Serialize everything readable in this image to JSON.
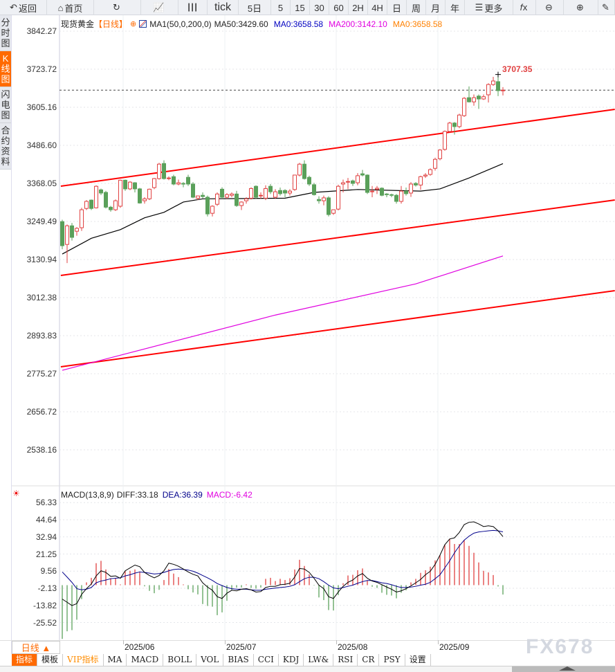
{
  "toolbar": {
    "items": [
      {
        "label": "返回",
        "icon": "back-arrow-icon",
        "w": 68
      },
      {
        "label": "首页",
        "icon": "home-icon",
        "w": 68
      },
      {
        "label": "",
        "icon": "refresh-icon",
        "w": 68
      },
      {
        "label": "",
        "icon": "bar-chart-icon",
        "w": 54
      },
      {
        "label": "",
        "icon": "candlestick-icon",
        "w": 42
      },
      {
        "label": "tick",
        "icon": "",
        "w": 45
      },
      {
        "label": "5日",
        "icon": "",
        "w": 47
      },
      {
        "label": "5",
        "icon": "",
        "w": 28
      },
      {
        "label": "15",
        "icon": "",
        "w": 28
      },
      {
        "label": "30",
        "icon": "",
        "w": 28
      },
      {
        "label": "60",
        "icon": "",
        "w": 28
      },
      {
        "label": "2H",
        "icon": "",
        "w": 28
      },
      {
        "label": "4H",
        "icon": "",
        "w": 28
      },
      {
        "label": "日",
        "icon": "",
        "w": 28
      },
      {
        "label": "周",
        "icon": "",
        "w": 28
      },
      {
        "label": "月",
        "icon": "",
        "w": 28
      },
      {
        "label": "年",
        "icon": "",
        "w": 28
      },
      {
        "label": "更多",
        "icon": "menu-icon",
        "w": 70
      },
      {
        "label": "",
        "icon": "fx-icon",
        "w": 33
      },
      {
        "label": "",
        "icon": "zoom-out-icon",
        "w": 40
      },
      {
        "label": "",
        "icon": "zoom-in-icon",
        "w": 50
      },
      {
        "label": "",
        "icon": "draw-icon",
        "w": 24
      }
    ]
  },
  "leftbar": [
    {
      "label": "分时图",
      "active": false
    },
    {
      "label": "K线图",
      "active": true
    },
    {
      "label": "闪电图",
      "active": false
    },
    {
      "label": "合约资料",
      "active": false
    }
  ],
  "header": {
    "symbol": "现货黄金",
    "period": "【日线】",
    "ma_params": "MA1(50,0,200,0)",
    "ma50": "MA50:3429.60",
    "ma0": "MA0:3658.58",
    "ma200": "MA200:3142.10",
    "ma0b": "MA0:3658.58"
  },
  "colors": {
    "up": "#e04040",
    "down": "#5aa05a",
    "ma50": "#000000",
    "ma200": "#e000e0",
    "trend": "#ff0000",
    "accent": "#ff6a00",
    "ma0": "#0000c0",
    "ma0b": "#ff8000",
    "dea": "#00008b",
    "diff": "#000000"
  },
  "high_label": "3707.35",
  "macd_header": {
    "name": "MACD(13,8,9)",
    "diff": "DIFF:33.18",
    "dea": "DEA:36.39",
    "macd": "MACD:-6.42"
  },
  "footer": {
    "period_button": "日线 ▲",
    "watermark": "FX678"
  },
  "tabs": [
    {
      "label": "指标",
      "active": true
    },
    {
      "label": "模板"
    },
    {
      "label": "VIP指标",
      "vip": true
    },
    {
      "label": "MA"
    },
    {
      "label": "MACD"
    },
    {
      "label": "BOLL"
    },
    {
      "label": "VOL"
    },
    {
      "label": "BIAS"
    },
    {
      "label": "CCI"
    },
    {
      "label": "KDJ"
    },
    {
      "label": "LW&"
    },
    {
      "label": "RSI"
    },
    {
      "label": "CR"
    },
    {
      "label": "PSY"
    },
    {
      "label": "设置"
    }
  ],
  "chart_data": {
    "type": "candlestick",
    "price_axis": {
      "ticks": [
        "3842.27",
        "3723.72",
        "3605.16",
        "3486.60",
        "3368.05",
        "3249.49",
        "3130.94",
        "3012.38",
        "2893.83",
        "2775.27",
        "2656.72",
        "2538.16"
      ],
      "range": [
        2538.16,
        3842.27
      ]
    },
    "date_ticks": [
      {
        "label": "2025/06",
        "index": 13
      },
      {
        "label": "2025/07",
        "index": 34
      },
      {
        "label": "2025/08",
        "index": 57
      },
      {
        "label": "2025/09",
        "index": 78
      }
    ],
    "last_price": 3658.58,
    "candles_ohlc": [
      [
        3249,
        3255,
        3163,
        3174
      ],
      [
        3178,
        3240,
        3120,
        3236
      ],
      [
        3236,
        3245,
        3190,
        3200
      ],
      [
        3219,
        3232,
        3205,
        3228
      ],
      [
        3230,
        3292,
        3220,
        3286
      ],
      [
        3290,
        3316,
        3285,
        3312
      ],
      [
        3316,
        3318,
        3285,
        3290
      ],
      [
        3292,
        3362,
        3290,
        3359
      ],
      [
        3348,
        3352,
        3332,
        3338
      ],
      [
        3340,
        3345,
        3290,
        3294
      ],
      [
        3294,
        3298,
        3280,
        3286
      ],
      [
        3286,
        3318,
        3282,
        3314
      ],
      [
        3297,
        3380,
        3292,
        3378
      ],
      [
        3378,
        3380,
        3345,
        3351
      ],
      [
        3351,
        3375,
        3347,
        3372
      ],
      [
        3370,
        3372,
        3340,
        3351
      ],
      [
        3351,
        3354,
        3305,
        3307
      ],
      [
        3314,
        3325,
        3305,
        3320
      ],
      [
        3320,
        3352,
        3316,
        3350
      ],
      [
        3355,
        3385,
        3350,
        3383
      ],
      [
        3383,
        3432,
        3380,
        3428
      ],
      [
        3430,
        3440,
        3380,
        3383
      ],
      [
        3383,
        3390,
        3378,
        3385
      ],
      [
        3389,
        3395,
        3362,
        3366
      ],
      [
        3366,
        3380,
        3362,
        3370
      ],
      [
        3368,
        3372,
        3356,
        3366
      ],
      [
        3387,
        3395,
        3360,
        3366
      ],
      [
        3366,
        3372,
        3322,
        3325
      ],
      [
        3322,
        3330,
        3316,
        3329
      ],
      [
        3331,
        3340,
        3322,
        3327
      ],
      [
        3325,
        3330,
        3265,
        3273
      ],
      [
        3275,
        3300,
        3265,
        3297
      ],
      [
        3303,
        3340,
        3298,
        3335
      ],
      [
        3350,
        3356,
        3320,
        3325
      ],
      [
        3325,
        3338,
        3320,
        3333
      ],
      [
        3331,
        3340,
        3325,
        3335
      ],
      [
        3335,
        3345,
        3295,
        3299
      ],
      [
        3299,
        3312,
        3285,
        3310
      ],
      [
        3314,
        3325,
        3305,
        3320
      ],
      [
        3322,
        3356,
        3318,
        3352
      ],
      [
        3359,
        3362,
        3320,
        3325
      ],
      [
        3329,
        3340,
        3320,
        3331
      ],
      [
        3322,
        3362,
        3316,
        3352
      ],
      [
        3359,
        3366,
        3335,
        3342
      ],
      [
        3325,
        3350,
        3320,
        3342
      ],
      [
        3346,
        3355,
        3330,
        3336
      ],
      [
        3346,
        3350,
        3325,
        3338
      ],
      [
        3338,
        3350,
        3330,
        3344
      ],
      [
        3349,
        3395,
        3345,
        3394
      ],
      [
        3394,
        3432,
        3390,
        3428
      ],
      [
        3428,
        3440,
        3380,
        3383
      ],
      [
        3387,
        3392,
        3360,
        3366
      ],
      [
        3364,
        3370,
        3330,
        3333
      ],
      [
        3318,
        3328,
        3305,
        3314
      ],
      [
        3314,
        3330,
        3300,
        3323
      ],
      [
        3323,
        3328,
        3265,
        3271
      ],
      [
        3275,
        3286,
        3270,
        3286
      ],
      [
        3288,
        3364,
        3284,
        3359
      ],
      [
        3366,
        3380,
        3340,
        3370
      ],
      [
        3372,
        3385,
        3350,
        3374
      ],
      [
        3376,
        3380,
        3360,
        3368
      ],
      [
        3370,
        3400,
        3362,
        3392
      ],
      [
        3398,
        3410,
        3390,
        3394
      ],
      [
        3394,
        3396,
        3335,
        3340
      ],
      [
        3342,
        3360,
        3325,
        3344
      ],
      [
        3350,
        3360,
        3335,
        3353
      ],
      [
        3353,
        3356,
        3328,
        3331
      ],
      [
        3335,
        3338,
        3325,
        3333
      ],
      [
        3333,
        3336,
        3325,
        3331
      ],
      [
        3331,
        3335,
        3305,
        3312
      ],
      [
        3312,
        3360,
        3305,
        3344
      ],
      [
        3344,
        3355,
        3330,
        3336
      ],
      [
        3338,
        3372,
        3326,
        3366
      ],
      [
        3368,
        3372,
        3358,
        3363
      ],
      [
        3363,
        3392,
        3348,
        3389
      ],
      [
        3391,
        3400,
        3385,
        3394
      ],
      [
        3396,
        3415,
        3392,
        3411
      ],
      [
        3415,
        3448,
        3408,
        3443
      ],
      [
        3445,
        3475,
        3440,
        3472
      ],
      [
        3474,
        3533,
        3470,
        3530
      ],
      [
        3530,
        3560,
        3525,
        3556
      ],
      [
        3556,
        3559,
        3520,
        3545
      ],
      [
        3545,
        3585,
        3540,
        3581
      ],
      [
        3579,
        3637,
        3575,
        3633
      ],
      [
        3635,
        3670,
        3620,
        3622
      ],
      [
        3622,
        3645,
        3610,
        3635
      ],
      [
        3640,
        3645,
        3600,
        3631
      ],
      [
        3631,
        3645,
        3628,
        3638
      ],
      [
        3644,
        3680,
        3620,
        3676
      ],
      [
        3676,
        3700,
        3672,
        3687
      ],
      [
        3685,
        3707.35,
        3640,
        3657
      ],
      [
        3657,
        3668,
        3642,
        3658.58
      ]
    ],
    "ma50": [
      [
        0,
        3148
      ],
      [
        6,
        3197
      ],
      [
        12,
        3224
      ],
      [
        17,
        3261
      ],
      [
        21,
        3278
      ],
      [
        25,
        3310
      ],
      [
        29,
        3320
      ],
      [
        46,
        3322
      ],
      [
        52,
        3340
      ],
      [
        61,
        3349
      ],
      [
        74,
        3344
      ],
      [
        78,
        3351
      ],
      [
        84,
        3385
      ],
      [
        91,
        3429.6
      ]
    ],
    "ma200": [
      [
        0,
        2786
      ],
      [
        44,
        2958
      ],
      [
        73,
        3055
      ],
      [
        91,
        3142.1
      ]
    ],
    "trend_lines": [
      [
        [
          -0.3,
          3359.4
        ],
        [
          114.1,
          3598.7
        ]
      ],
      [
        [
          -0.3,
          3081.4
        ],
        [
          114.1,
          3316.3
        ]
      ],
      [
        [
          -0.3,
          2796.8
        ],
        [
          114.1,
          3034.0
        ]
      ]
    ],
    "macd": {
      "axis_ticks": [
        "56.33",
        "44.64",
        "32.94",
        "21.25",
        "9.56",
        "-2.13",
        "-13.82",
        "-25.52"
      ],
      "hist": [
        -36.7,
        -31.5,
        -30.7,
        -23.6,
        -9.5,
        1.9,
        5,
        15,
        16.6,
        10.7,
        4.7,
        4.7,
        0.5,
        9.5,
        9.8,
        10.7,
        8.7,
        -0.8,
        -3.9,
        -5.5,
        -3.2,
        3.5,
        11,
        7.9,
        5.5,
        0.5,
        -2.8,
        -5,
        -6.3,
        -12.9,
        -14.2,
        -14.7,
        -20.5,
        -18.6,
        -10.7,
        -3.2,
        -1.6,
        -1.6,
        0.5,
        -1.9,
        -2.4,
        -1.6,
        4.3,
        5,
        2.8,
        4.3,
        3.5,
        4.7,
        10.7,
        17.3,
        13.1,
        7.4,
        -0.3,
        -8.4,
        -10.2,
        -17,
        -17.3,
        -6.8,
        1.3,
        6.6,
        7.1,
        10.2,
        11.4,
        3.2,
        -1.1,
        -1.9,
        -5.2,
        -6.6,
        -7.1,
        -9,
        -5.2,
        -3.5,
        1.9,
        4.3,
        8.4,
        10.2,
        12.6,
        16.9,
        20.5,
        27.6,
        31.5,
        28.1,
        28.1,
        30.7,
        26.8,
        22.1,
        15.5,
        9.8,
        8.7,
        6.9,
        -0.9,
        -6.42
      ],
      "diff": [
        -9.5,
        -11.7,
        -13.9,
        -12.6,
        -6.3,
        -2.4,
        0.8,
        6.3,
        9.8,
        8.7,
        6,
        6.3,
        4.7,
        9.8,
        11.8,
        13.7,
        12.6,
        8.7,
        6.6,
        5,
        6.6,
        9.8,
        15,
        14.2,
        12.9,
        11,
        9,
        7.4,
        6.3,
        1.6,
        -1.3,
        -3.5,
        -7.9,
        -9.1,
        -5.5,
        -3.5,
        -3.9,
        -2.8,
        -2.4,
        -3.2,
        -4.7,
        -4.4,
        -1.6,
        -0.8,
        -0.8,
        0.3,
        0.6,
        1.3,
        5.5,
        11.4,
        11,
        8.7,
        4.7,
        0,
        -2.4,
        -7.9,
        -9.1,
        -4.7,
        -0.8,
        1.9,
        3.5,
        6.3,
        7.9,
        4.7,
        2.8,
        1.9,
        0.3,
        -1.3,
        -2.8,
        -4.7,
        -3.9,
        -2.4,
        -0.5,
        1.6,
        3.9,
        7.1,
        9.5,
        14.2,
        20.5,
        27.6,
        31.5,
        32.3,
        36,
        41.3,
        42.9,
        43.2,
        41.8,
        40,
        40.5,
        40,
        37.1,
        33.18
      ],
      "dea": [
        9,
        5.5,
        1.9,
        -2.4,
        -3.2,
        -2.8,
        -1.6,
        1.6,
        2.8,
        3.5,
        4.4,
        4.7,
        5,
        6.3,
        7.1,
        8.2,
        9,
        8.7,
        8.2,
        7.6,
        7.9,
        8.7,
        9.8,
        10.7,
        11,
        10.7,
        10.3,
        9.5,
        8.2,
        6.6,
        5,
        3.2,
        1.1,
        -0.3,
        -1.6,
        -2.4,
        -2.8,
        -2.8,
        -2.8,
        -3.2,
        -3.5,
        -3.5,
        -2.8,
        -2.4,
        -2,
        -1.6,
        -1.3,
        -0.8,
        0.3,
        2.4,
        4.4,
        5.4,
        5.4,
        4.4,
        2.4,
        0,
        -1.9,
        -2.4,
        -1.6,
        -0.8,
        0,
        1.3,
        2.4,
        3.2,
        3.2,
        2.4,
        1.6,
        1.1,
        0.3,
        -0.8,
        -1.6,
        -1.6,
        -1.3,
        -0.8,
        0,
        0.6,
        1.9,
        4.4,
        7.1,
        11.8,
        16.6,
        22.1,
        26.8,
        30.7,
        33.4,
        35.5,
        36.3,
        36.7,
        37.1,
        37.4,
        37.1,
        36.39
      ]
    }
  }
}
